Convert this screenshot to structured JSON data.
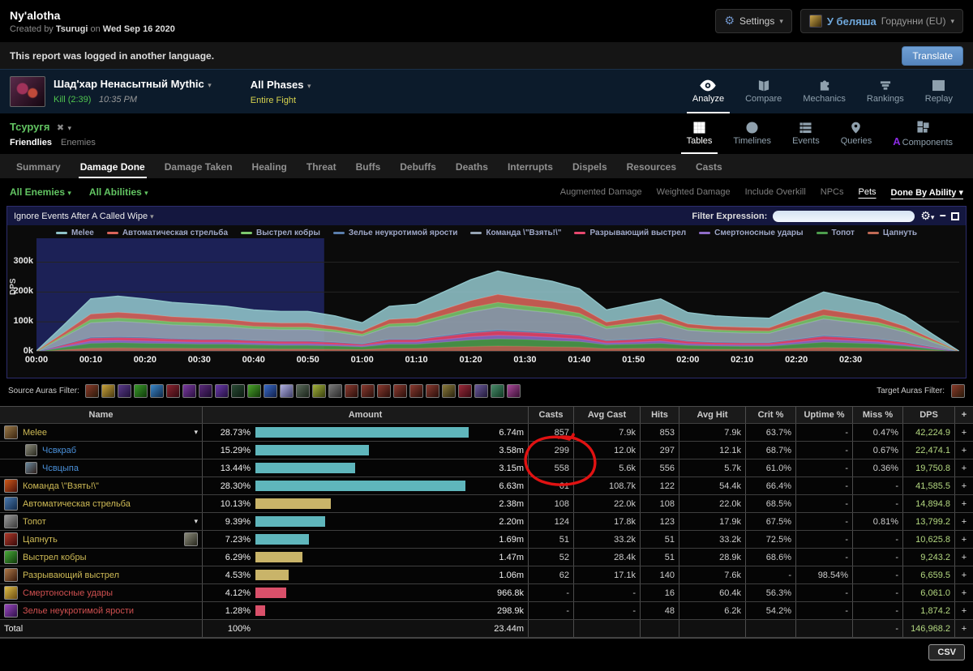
{
  "header": {
    "title": "Ny'alotha",
    "created_prefix": "Created by",
    "author": "Tsurugi",
    "on_word": "on",
    "date": "Wed Sep 16 2020",
    "settings_label": "Settings",
    "account_name": "У беляша",
    "account_realm": "Гордунни (EU)"
  },
  "banner": {
    "message": "This report was logged in another language.",
    "translate_label": "Translate"
  },
  "fight": {
    "boss": "Шад'хар Ненасытный Mythic",
    "kill": "Kill (2:39)",
    "time": "10:35 PM",
    "phases": "All Phases",
    "phase_detail": "Entire Fight"
  },
  "main_tabs": {
    "analyze": "Analyze",
    "compare": "Compare",
    "mechanics": "Mechanics",
    "rankings": "Rankings",
    "replay": "Replay"
  },
  "view_tabs": {
    "tables": "Tables",
    "timelines": "Timelines",
    "events": "Events",
    "queries": "Queries",
    "components": "Components"
  },
  "actor": {
    "name": "Тсуругя",
    "friendlies": "Friendlies",
    "enemies": "Enemies"
  },
  "menu_tabs": [
    "Summary",
    "Damage Done",
    "Damage Taken",
    "Healing",
    "Threat",
    "Buffs",
    "Debuffs",
    "Deaths",
    "Interrupts",
    "Dispels",
    "Resources",
    "Casts"
  ],
  "menu_active_index": 1,
  "filters": {
    "enemies": "All Enemies",
    "abilities": "All Abilities",
    "right": [
      {
        "label": "Augmented Damage",
        "active": false
      },
      {
        "label": "Weighted Damage",
        "active": false
      },
      {
        "label": "Include Overkill",
        "active": false
      },
      {
        "label": "NPCs",
        "active": false
      },
      {
        "label": "Pets",
        "active": true
      },
      {
        "label": "Done By Ability",
        "active": true,
        "caret": true
      }
    ]
  },
  "chart_panel": {
    "dropdown_label": "Ignore Events After A Called Wipe",
    "filter_label": "Filter Expression:",
    "zoom_label": "Zoom",
    "y_axis_label": "DPS"
  },
  "chart_data": {
    "type": "area",
    "stacked": true,
    "ylabel": "DPS",
    "values_unit": "k (thousands DPS)",
    "sample_interval_s": 5,
    "duration_s": 170,
    "ylim_k": [
      0,
      380
    ],
    "grid": true,
    "legend_position": "top",
    "zoom_selection_s": [
      0,
      53
    ],
    "x_ticks": [
      "00:00",
      "00:10",
      "00:20",
      "00:30",
      "00:40",
      "00:50",
      "01:00",
      "01:10",
      "01:20",
      "01:30",
      "01:40",
      "01:50",
      "02:00",
      "02:10",
      "02:20",
      "02:30"
    ],
    "y_ticks": [
      {
        "value": 0,
        "label": "0k"
      },
      {
        "value": 100,
        "label": "100k"
      },
      {
        "value": 200,
        "label": "200k"
      },
      {
        "value": 300,
        "label": "300k"
      }
    ],
    "stack_order": [
      "Цапнуть",
      "Топот",
      "Смертоносные удары",
      "Разрывающий выстрел",
      "Зелье неукротимой ярости",
      "Команда \\\"Взять!\\\"",
      "Выстрел кобры",
      "Автоматическая стрельба",
      "Melee"
    ],
    "series": [
      {
        "name": "Melee",
        "color": "#8fc3c8",
        "values": [
          1,
          26,
          51,
          54,
          51,
          48,
          46,
          44,
          41,
          39,
          39,
          35,
          28,
          44,
          46,
          58,
          70,
          78,
          73,
          68,
          61,
          41,
          46,
          51,
          38,
          35,
          33,
          32,
          46,
          58,
          52,
          46,
          35,
          17,
          1
        ]
      },
      {
        "name": "Автоматическая стрельба",
        "color": "#d9645a",
        "values": [
          1,
          9,
          18,
          19,
          18,
          17,
          16,
          15,
          14,
          14,
          14,
          12,
          10,
          15,
          16,
          20,
          24,
          27,
          25,
          24,
          21,
          14,
          16,
          18,
          13,
          12,
          12,
          11,
          16,
          20,
          18,
          16,
          12,
          6,
          0
        ]
      },
      {
        "name": "Выстрел кобры",
        "color": "#7dc86e",
        "values": [
          0,
          5,
          11,
          11,
          11,
          10,
          10,
          9,
          8,
          8,
          8,
          7,
          6,
          9,
          10,
          12,
          14,
          16,
          15,
          14,
          13,
          8,
          10,
          11,
          8,
          7,
          7,
          7,
          10,
          12,
          11,
          10,
          7,
          4,
          0
        ]
      },
      {
        "name": "Зелье неукротимой ярости",
        "color": "#5b7fae",
        "values": [
          0,
          1,
          3,
          3,
          3,
          2,
          2,
          2,
          2,
          2,
          2,
          2,
          1,
          2,
          2,
          3,
          4,
          4,
          4,
          4,
          3,
          2,
          2,
          3,
          2,
          2,
          2,
          2,
          2,
          3,
          3,
          2,
          2,
          1,
          0
        ]
      },
      {
        "name": "Команда \\\"Взять!\\\"",
        "color": "#97a5b5",
        "values": [
          1,
          25,
          49,
          52,
          49,
          46,
          45,
          42,
          39,
          38,
          38,
          34,
          27,
          42,
          45,
          56,
          67,
          76,
          70,
          66,
          59,
          39,
          45,
          49,
          36,
          34,
          32,
          31,
          45,
          56,
          50,
          45,
          34,
          17,
          1
        ]
      },
      {
        "name": "Разрывающий выстрел",
        "color": "#e8486e",
        "values": [
          0,
          5,
          9,
          9,
          9,
          8,
          8,
          8,
          7,
          7,
          7,
          6,
          5,
          8,
          8,
          10,
          12,
          14,
          13,
          12,
          11,
          7,
          8,
          9,
          7,
          6,
          6,
          6,
          8,
          10,
          9,
          8,
          6,
          3,
          0
        ]
      },
      {
        "name": "Смертоносные удары",
        "color": "#8f6cc8",
        "values": [
          0,
          4,
          8,
          8,
          8,
          7,
          7,
          7,
          6,
          6,
          6,
          5,
          4,
          7,
          7,
          9,
          11,
          12,
          11,
          11,
          9,
          6,
          7,
          8,
          6,
          5,
          5,
          5,
          7,
          9,
          8,
          7,
          5,
          3,
          0
        ]
      },
      {
        "name": "Топот",
        "color": "#4d9e4d",
        "values": [
          0,
          8,
          16,
          17,
          16,
          15,
          14,
          14,
          13,
          12,
          12,
          11,
          9,
          14,
          14,
          18,
          22,
          24,
          23,
          21,
          19,
          13,
          14,
          16,
          12,
          11,
          10,
          10,
          14,
          18,
          16,
          14,
          11,
          5,
          0
        ]
      },
      {
        "name": "Цапнуть",
        "color": "#c06a55",
        "values": [
          0,
          6,
          12,
          13,
          12,
          12,
          11,
          11,
          10,
          9,
          9,
          8,
          7,
          11,
          11,
          14,
          17,
          19,
          18,
          16,
          15,
          10,
          11,
          12,
          9,
          8,
          8,
          8,
          11,
          14,
          13,
          12,
          8,
          4,
          0
        ]
      }
    ]
  },
  "auras": {
    "source_label": "Source Auras Filter:",
    "target_label": "Target Auras Filter:",
    "source_icons": [
      [
        "#8a3a2a",
        "#2a1a0a"
      ],
      [
        "#c8a23a",
        "#4a3a12"
      ],
      [
        "#5a3a8a",
        "#20123a"
      ],
      [
        "#3a9a2a",
        "#0f3a0a"
      ],
      [
        "#3a86c8",
        "#0f2a4a"
      ],
      [
        "#8a2430",
        "#330a10"
      ],
      [
        "#7a3aa0",
        "#2a1040"
      ],
      [
        "#5a2a7a",
        "#1d0a30"
      ],
      [
        "#6a3aaa",
        "#241040"
      ],
      [
        "#2a4a34",
        "#0a1a10"
      ],
      [
        "#4aa42a",
        "#143a0a"
      ],
      [
        "#3a6ac8",
        "#10204a"
      ],
      [
        "#b0b0e0",
        "#40406a"
      ],
      [
        "#5a6a5a",
        "#1a241a"
      ],
      [
        "#a0b03a",
        "#3a400f"
      ],
      [
        "#7a7a7a",
        "#2a2a2a"
      ],
      [
        "#8a3a30",
        "#2a0f0a"
      ],
      [
        "#8a3a30",
        "#2a0f0a"
      ],
      [
        "#8a3a30",
        "#2a0f0a"
      ],
      [
        "#8a3a30",
        "#2a0f0a"
      ],
      [
        "#8a3a30",
        "#2a0f0a"
      ],
      [
        "#8a3a30",
        "#2a0f0a"
      ],
      [
        "#8a7a3a",
        "#2a240f"
      ],
      [
        "#9a2a3a",
        "#3a0a12"
      ],
      [
        "#6a5a9a",
        "#221a3a"
      ],
      [
        "#4a8a6a",
        "#103a24"
      ],
      [
        "#aa4a9a",
        "#3a1034"
      ]
    ],
    "target_icons": [
      [
        "#8a3a2a",
        "#2a1a0a"
      ]
    ]
  },
  "table": {
    "columns": [
      "Name",
      "Amount",
      "Casts",
      "Avg Cast",
      "Hits",
      "Avg Hit",
      "Crit %",
      "Uptime %",
      "Miss %",
      "DPS",
      "+"
    ],
    "plus_label": "+",
    "max_pct": 28.73,
    "rows": [
      {
        "name": "Melee",
        "color": "y",
        "sub": false,
        "caret": true,
        "icon": [
          "#9a7a4a",
          "#3a240f"
        ],
        "pct": "28.73%",
        "pct_val": 28.73,
        "bar": "#5fb6bc",
        "amount": "6.74m",
        "casts": "857",
        "avg_cast": "7.9k",
        "hits": "853",
        "avg_hit": "7.9k",
        "crit": "63.7%",
        "uptime": "-",
        "miss": "0.47%",
        "dps": "42,224.9"
      },
      {
        "name": "Чсвкраб",
        "color": "b",
        "sub": true,
        "icon": [
          "#8a8a7a",
          "#2a2a20"
        ],
        "pct": "15.29%",
        "pct_val": 15.29,
        "bar": "#5fb6bc",
        "amount": "3.58m",
        "casts": "299",
        "avg_cast": "12.0k",
        "hits": "297",
        "avg_hit": "12.1k",
        "crit": "68.7%",
        "uptime": "-",
        "miss": "0.67%",
        "dps": "22,474.1"
      },
      {
        "name": "Чсвцыпа",
        "color": "b",
        "sub": true,
        "icon": [
          "#6a8aa0",
          "#30201a"
        ],
        "pct": "13.44%",
        "pct_val": 13.44,
        "bar": "#5fb6bc",
        "amount": "3.15m",
        "casts": "558",
        "avg_cast": "5.6k",
        "hits": "556",
        "avg_hit": "5.7k",
        "crit": "61.0%",
        "uptime": "-",
        "miss": "0.36%",
        "dps": "19,750.8"
      },
      {
        "name": "Команда \\\"Взять!\\\"",
        "color": "y",
        "sub": false,
        "icon": [
          "#d05a1a",
          "#4a120a"
        ],
        "pct": "28.30%",
        "pct_val": 28.3,
        "bar": "#5fb6bc",
        "amount": "6.63m",
        "casts": "61",
        "avg_cast": "108.7k",
        "hits": "122",
        "avg_hit": "54.4k",
        "crit": "66.4%",
        "uptime": "-",
        "miss": "-",
        "dps": "41,585.5"
      },
      {
        "name": "Автоматическая стрельба",
        "color": "y",
        "sub": false,
        "icon": [
          "#4a7ab0",
          "#122a4a"
        ],
        "pct": "10.13%",
        "pct_val": 10.13,
        "bar": "#c9b469",
        "amount": "2.38m",
        "casts": "108",
        "avg_cast": "22.0k",
        "hits": "108",
        "avg_hit": "22.0k",
        "crit": "68.5%",
        "uptime": "-",
        "miss": "-",
        "dps": "14,894.8"
      },
      {
        "name": "Топот",
        "color": "y",
        "sub": false,
        "caret": true,
        "icon": [
          "#9a9a9a",
          "#3a3a3a"
        ],
        "pct": "9.39%",
        "pct_val": 9.39,
        "bar": "#5fb6bc",
        "amount": "2.20m",
        "casts": "124",
        "avg_cast": "17.8k",
        "hits": "123",
        "avg_hit": "17.9k",
        "crit": "67.5%",
        "uptime": "-",
        "miss": "0.81%",
        "dps": "13,799.2"
      },
      {
        "name": "Цапнуть",
        "color": "y",
        "sub": false,
        "extra_icon": [
          "#8a8a7a",
          "#2a2a20"
        ],
        "icon": [
          "#b03a2a",
          "#3a0a0a"
        ],
        "pct": "7.23%",
        "pct_val": 7.23,
        "bar": "#5fb6bc",
        "amount": "1.69m",
        "casts": "51",
        "avg_cast": "33.2k",
        "hits": "51",
        "avg_hit": "33.2k",
        "crit": "72.5%",
        "uptime": "-",
        "miss": "-",
        "dps": "10,625.8"
      },
      {
        "name": "Выстрел кобры",
        "color": "y",
        "sub": false,
        "icon": [
          "#4aaa3a",
          "#0f3a0a"
        ],
        "pct": "6.29%",
        "pct_val": 6.29,
        "bar": "#c9b469",
        "amount": "1.47m",
        "casts": "52",
        "avg_cast": "28.4k",
        "hits": "51",
        "avg_hit": "28.9k",
        "crit": "68.6%",
        "uptime": "-",
        "miss": "-",
        "dps": "9,243.2"
      },
      {
        "name": "Разрывающий выстрел",
        "color": "y",
        "sub": false,
        "icon": [
          "#b07a4a",
          "#3a1a0a"
        ],
        "pct": "4.53%",
        "pct_val": 4.53,
        "bar": "#c9b469",
        "amount": "1.06m",
        "casts": "62",
        "avg_cast": "17.1k",
        "hits": "140",
        "avg_hit": "7.6k",
        "crit": "-",
        "uptime": "98.54%",
        "miss": "-",
        "dps": "6,659.5"
      },
      {
        "name": "Смертоносные удары",
        "color": "r",
        "sub": false,
        "icon": [
          "#e0c04a",
          "#6a4a0f"
        ],
        "pct": "4.12%",
        "pct_val": 4.12,
        "bar": "#d9506a",
        "amount": "966.8k",
        "casts": "-",
        "avg_cast": "-",
        "hits": "16",
        "avg_hit": "60.4k",
        "crit": "56.3%",
        "uptime": "-",
        "miss": "-",
        "dps": "6,061.0"
      },
      {
        "name": "Зелье неукротимой ярости",
        "color": "r",
        "sub": false,
        "icon": [
          "#9a4ac0",
          "#30104a"
        ],
        "pct": "1.28%",
        "pct_val": 1.28,
        "bar": "#d9506a",
        "amount": "298.9k",
        "casts": "-",
        "avg_cast": "-",
        "hits": "48",
        "avg_hit": "6.2k",
        "crit": "54.2%",
        "uptime": "-",
        "miss": "-",
        "dps": "1,874.2"
      }
    ],
    "total": {
      "label": "Total",
      "pct": "100%",
      "amount": "23.44m",
      "miss": "-",
      "dps": "146,968.2"
    },
    "csv_label": "CSV"
  },
  "annotation": {
    "type": "hand-drawn-circle",
    "color": "#e01212",
    "around": "Casts 299 and 558"
  }
}
